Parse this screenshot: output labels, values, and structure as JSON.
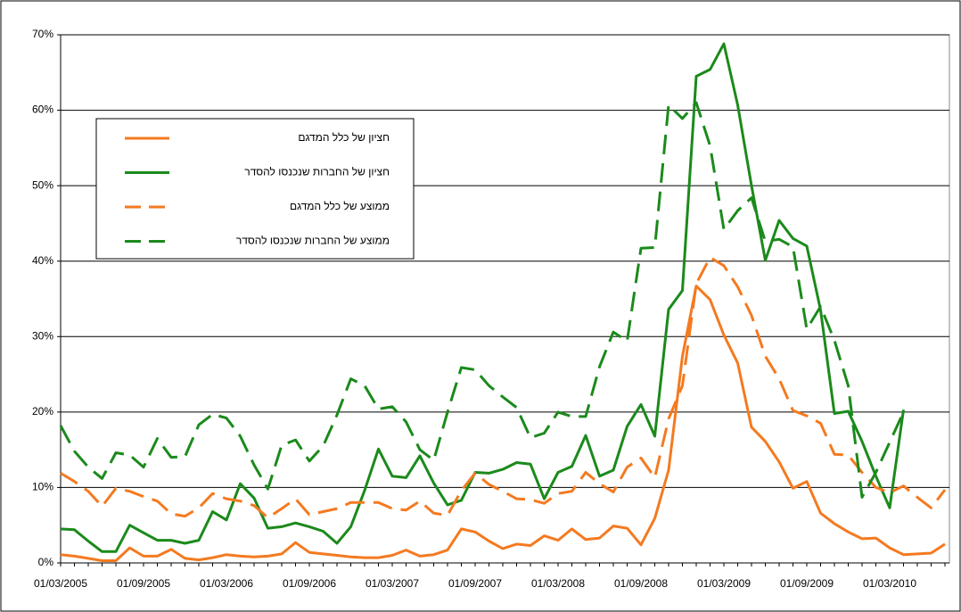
{
  "chart_data": {
    "type": "line",
    "categories": [
      "01/03/2005",
      null,
      null,
      null,
      null,
      null,
      "01/09/2005",
      null,
      null,
      null,
      null,
      null,
      "01/03/2006",
      null,
      null,
      null,
      null,
      null,
      "01/09/2006",
      null,
      null,
      null,
      null,
      null,
      "01/03/2007",
      null,
      null,
      null,
      null,
      null,
      "01/09/2007",
      null,
      null,
      null,
      null,
      null,
      "01/03/2008",
      null,
      null,
      null,
      null,
      null,
      "01/09/2008",
      null,
      null,
      null,
      null,
      null,
      "01/03/2009",
      null,
      null,
      null,
      null,
      null,
      "01/09/2009",
      null,
      null,
      null,
      null,
      null,
      "01/03/2010",
      null,
      null,
      null,
      null
    ],
    "series": [
      {
        "name": "חציון של כלל המדגם",
        "color": "#f47a20",
        "dash": false,
        "values": [
          1.1,
          0.9,
          0.6,
          0.3,
          0.3,
          2.0,
          0.9,
          0.9,
          1.8,
          0.6,
          0.4,
          0.7,
          1.1,
          0.9,
          0.8,
          0.9,
          1.2,
          2.7,
          1.4,
          1.2,
          1.0,
          0.8,
          0.7,
          0.7,
          1.0,
          1.7,
          0.9,
          1.1,
          1.7,
          4.5,
          4.1,
          2.9,
          1.9,
          2.5,
          2.3,
          3.6,
          3.0,
          4.5,
          3.1,
          3.3,
          4.9,
          4.6,
          2.4,
          5.9,
          12.3,
          27.4,
          36.7,
          34.9,
          30.2,
          26.5,
          18.0,
          16.1,
          13.4,
          9.9,
          10.8,
          6.6,
          5.2,
          4.1,
          3.2,
          3.3,
          2.0,
          1.1,
          1.2,
          1.3,
          2.5
        ]
      },
      {
        "name": "חציון של החברות שנכנסו להסדר",
        "color": "#1b8a1b",
        "dash": false,
        "values": [
          4.5,
          4.4,
          2.9,
          1.5,
          1.5,
          5.0,
          4.0,
          3.0,
          3.0,
          2.6,
          3.0,
          6.8,
          5.7,
          10.5,
          8.6,
          4.6,
          4.8,
          5.3,
          4.8,
          4.2,
          2.6,
          4.8,
          9.6,
          15.1,
          11.5,
          11.3,
          14.2,
          10.6,
          7.7,
          8.3,
          12.0,
          11.9,
          12.4,
          13.3,
          13.1,
          8.5,
          12.0,
          12.8,
          16.9,
          11.5,
          12.3,
          18.1,
          21.0,
          16.8,
          33.6,
          36.1,
          64.5,
          65.4,
          68.8,
          60.7,
          50.0,
          40.1,
          45.4,
          43.0,
          42.0,
          33.5,
          19.8,
          20.1,
          16.1,
          11.5,
          7.3,
          20.3,
          null,
          null,
          null
        ]
      },
      {
        "name": "ממוצע של כלל המדגם",
        "color": "#f47a20",
        "dash": true,
        "values": [
          11.9,
          10.8,
          9.5,
          7.5,
          9.9,
          9.5,
          8.8,
          8.2,
          6.5,
          6.2,
          7.3,
          9.2,
          8.5,
          8.2,
          7.6,
          6.0,
          7.2,
          8.5,
          6.4,
          6.8,
          7.2,
          8.0,
          8.0,
          8.0,
          7.2,
          7.0,
          8.2,
          6.6,
          6.3,
          9.6,
          11.9,
          10.4,
          9.5,
          8.5,
          8.4,
          7.9,
          9.2,
          9.5,
          12.0,
          10.5,
          9.4,
          12.7,
          13.9,
          11.3,
          19.1,
          23.5,
          37.0,
          40.5,
          39.4,
          36.6,
          32.8,
          27.4,
          24.4,
          20.2,
          19.5,
          18.5,
          14.4,
          14.3,
          12.0,
          10.0,
          9.3,
          10.2,
          8.7,
          7.3,
          9.7
        ]
      },
      {
        "name": "ממוצע של החברות שנכנסו להסדר",
        "color": "#1b8a1b",
        "dash": true,
        "values": [
          18.2,
          14.8,
          12.7,
          11.2,
          14.6,
          14.3,
          12.7,
          16.5,
          14.0,
          14.1,
          18.3,
          19.7,
          19.2,
          16.8,
          13.0,
          9.8,
          15.6,
          16.3,
          13.5,
          15.5,
          19.6,
          24.4,
          23.5,
          20.4,
          20.7,
          18.7,
          15.0,
          13.6,
          20.0,
          25.9,
          25.6,
          23.5,
          22.0,
          20.6,
          16.6,
          17.2,
          20.0,
          19.4,
          19.4,
          26.0,
          30.6,
          29.4,
          41.7,
          41.8,
          60.7,
          58.9,
          61.0,
          55.3,
          44.2,
          46.7,
          48.4,
          42.6,
          42.9,
          41.9,
          31.0,
          34.0,
          29.5,
          23.5,
          8.7,
          12.0,
          16.0,
          20.0,
          null,
          null,
          null
        ]
      }
    ],
    "ylim": [
      0,
      70
    ],
    "yticks": [
      {
        "value": 0,
        "label": "0%"
      },
      {
        "value": 10,
        "label": "10%"
      },
      {
        "value": 20,
        "label": "20%"
      },
      {
        "value": 30,
        "label": "30%"
      },
      {
        "value": 40,
        "label": "40%"
      },
      {
        "value": 50,
        "label": "50%"
      },
      {
        "value": 60,
        "label": "60%"
      },
      {
        "value": 70,
        "label": "70%"
      }
    ],
    "grid": true,
    "legend": "upper left"
  }
}
